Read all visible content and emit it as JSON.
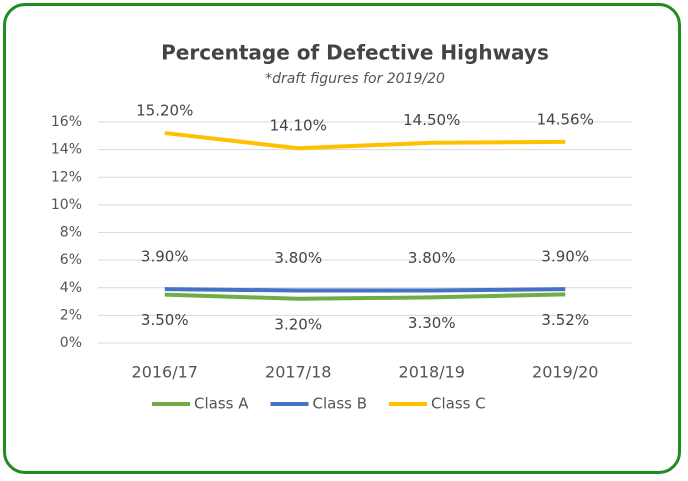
{
  "chart_data": {
    "type": "line",
    "title": "Percentage of Defective Highways",
    "subtitle": "*draft figures for 2019/20",
    "categories": [
      "2016/17",
      "2017/18",
      "2018/19",
      "2019/20"
    ],
    "series": [
      {
        "name": "Class A",
        "color": "#70ad47",
        "values": [
          3.5,
          3.2,
          3.3,
          3.52
        ],
        "value_labels": [
          "3.50%",
          "3.20%",
          "3.30%",
          "3.52%"
        ]
      },
      {
        "name": "Class B",
        "color": "#4472c4",
        "values": [
          3.9,
          3.8,
          3.8,
          3.9
        ],
        "value_labels": [
          "3.90%",
          "3.80%",
          "3.80%",
          "3.90%"
        ]
      },
      {
        "name": "Class C",
        "color": "#ffc000",
        "values": [
          15.2,
          14.1,
          14.5,
          14.56
        ],
        "value_labels": [
          "15.20%",
          "14.10%",
          "14.50%",
          "14.56%"
        ]
      }
    ],
    "ylim": [
      0,
      16
    ],
    "yticks": [
      {
        "value": 0,
        "label": "0%"
      },
      {
        "value": 2,
        "label": "2%"
      },
      {
        "value": 4,
        "label": "4%"
      },
      {
        "value": 6,
        "label": "6%"
      },
      {
        "value": 8,
        "label": "8%"
      },
      {
        "value": 10,
        "label": "10%"
      },
      {
        "value": 12,
        "label": "12%"
      },
      {
        "value": 14,
        "label": "14%"
      },
      {
        "value": 16,
        "label": "16%"
      }
    ],
    "grid": true,
    "legend": "bottom"
  }
}
